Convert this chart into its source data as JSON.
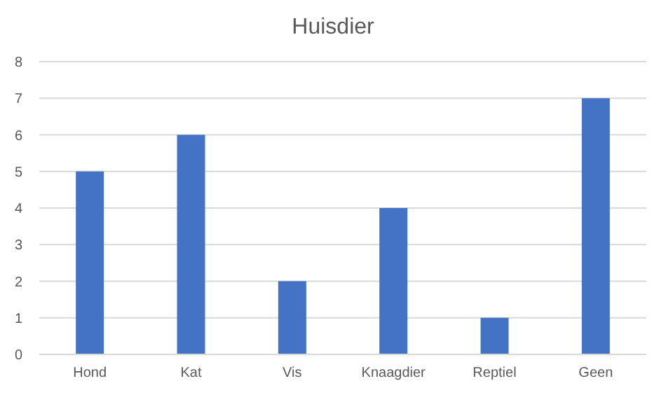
{
  "chart_data": {
    "type": "bar",
    "title": "Huisdier",
    "categories": [
      "Hond",
      "Kat",
      "Vis",
      "Knaagdier",
      "Reptiel",
      "Geen"
    ],
    "values": [
      5,
      6,
      2,
      4,
      1,
      7
    ],
    "color": "#4472c4",
    "ylim": [
      0,
      8
    ],
    "yticks": [
      0,
      1,
      2,
      3,
      4,
      5,
      6,
      7,
      8
    ],
    "grid": "y"
  }
}
